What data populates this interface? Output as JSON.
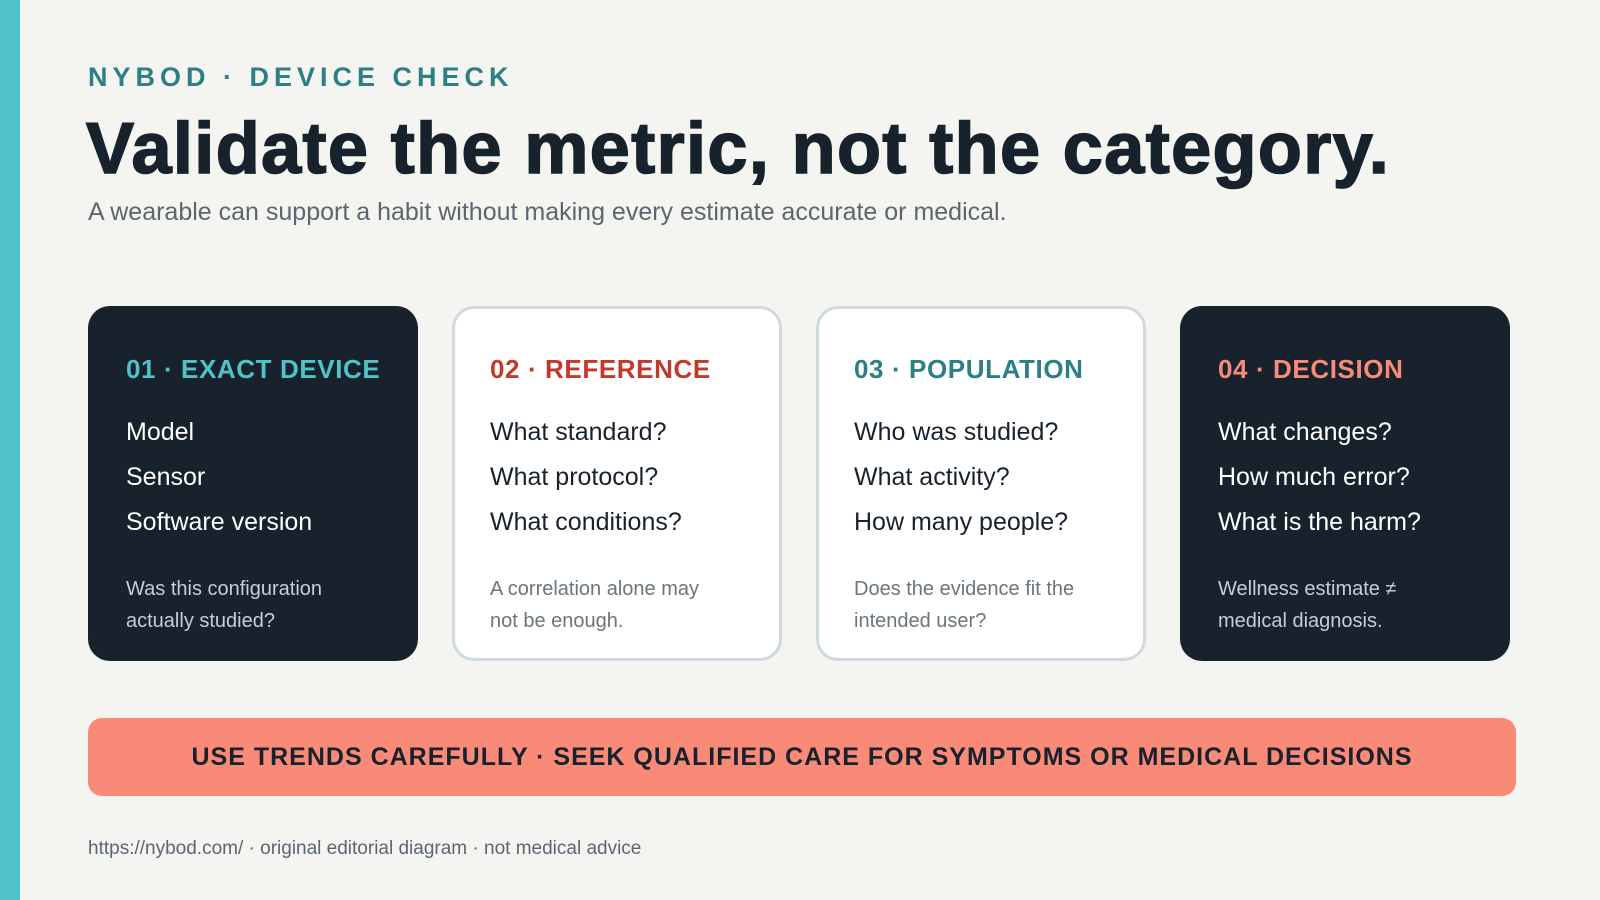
{
  "eyebrow": "NYBOD · DEVICE CHECK",
  "title": "Validate the metric, not the category.",
  "subtitle": "A wearable can support a habit without making every estimate accurate or medical.",
  "colors": {
    "accent_teal": "#4fc3c8",
    "dark_navy": "#17222d",
    "coral": "#fa8a78",
    "red": "#c0392b",
    "dark_teal": "#2d7f86"
  },
  "cards": [
    {
      "heading": "01 · EXACT DEVICE",
      "style": "dark",
      "heading_color": "#4fc3c8",
      "items": [
        "Model",
        "Sensor",
        "Software version"
      ],
      "note": "Was this configuration actually studied?"
    },
    {
      "heading": "02 · REFERENCE",
      "style": "light",
      "heading_color": "#c0392b",
      "items": [
        "What standard?",
        "What protocol?",
        "What conditions?"
      ],
      "note": "A correlation alone may not be enough."
    },
    {
      "heading": "03 · POPULATION",
      "style": "light",
      "heading_color": "#2d7f86",
      "items": [
        "Who was studied?",
        "What activity?",
        "How many people?"
      ],
      "note": "Does the evidence fit the intended user?"
    },
    {
      "heading": "04 · DECISION",
      "style": "dark",
      "heading_color": "#fa8a78",
      "items": [
        "What changes?",
        "How much error?",
        "What is the harm?"
      ],
      "note": "Wellness estimate ≠ medical diagnosis."
    }
  ],
  "banner": "USE TRENDS CAREFULLY · SEEK QUALIFIED CARE FOR SYMPTOMS OR MEDICAL DECISIONS",
  "footer": "https://nybod.com/ · original editorial diagram · not medical advice"
}
